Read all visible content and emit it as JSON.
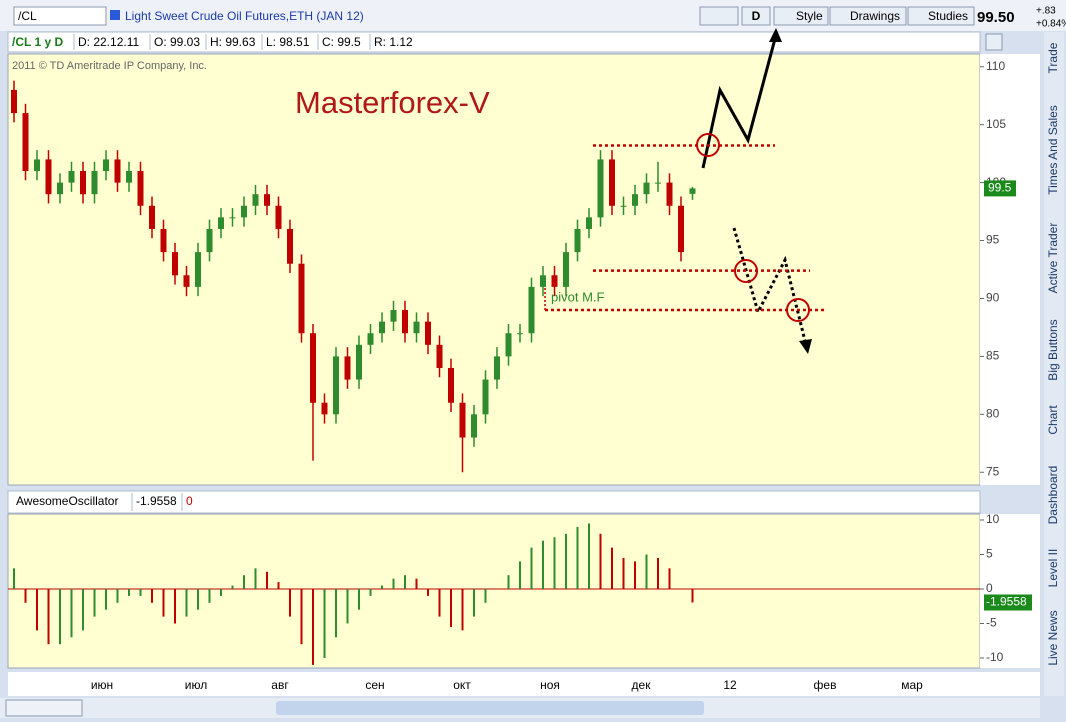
{
  "toolbar": {
    "symbol": "/CL",
    "description": "Light Sweet Crude Oil Futures,ETH (JAN 12)",
    "buttons": [
      "D",
      "Style",
      "Drawings",
      "Studies"
    ],
    "last": "99.50",
    "change": "+.83",
    "change_pct": "+0.84%"
  },
  "info_bar": [
    "/CL 1 y D",
    "D: 22.12.11",
    "O: 99.03",
    "H: 99.63",
    "L: 98.51",
    "C: 99.5",
    "R: 1.12"
  ],
  "side_tabs": [
    "Trade",
    "Times And Sales",
    "Active Trader",
    "Big Buttons",
    "Chart",
    "Dashboard",
    "Level II",
    "Live News"
  ],
  "chart_data": [
    {
      "type": "candlestick",
      "title": "Masterforex-V",
      "copyright": "2011 © TD Ameritrade IP Company, Inc.",
      "annotation": "pivot M.F",
      "up_color": "#2e8b2e",
      "down_color": "#c00000",
      "level_color": "#c00000",
      "ylim": [
        73.9,
        111.1
      ],
      "yticks": [
        75,
        80,
        85,
        90,
        95,
        100,
        105,
        110
      ],
      "levels": [
        103.2,
        92.4,
        89.0
      ],
      "last_value": 99.5,
      "x_labels": [
        "июн",
        "июл",
        "авг",
        "сен",
        "окт",
        "ноя",
        "дек",
        "12",
        "фев",
        "мар"
      ],
      "ohlc": [
        [
          108,
          108.8,
          105.2,
          106
        ],
        [
          106,
          106.8,
          100.2,
          101
        ],
        [
          101,
          102.8,
          100.2,
          102
        ],
        [
          102,
          102.8,
          98.2,
          99
        ],
        [
          99,
          100.8,
          98.2,
          100
        ],
        [
          100,
          101.8,
          99.2,
          101
        ],
        [
          101,
          101.8,
          98.2,
          99
        ],
        [
          99,
          101.8,
          98.2,
          101
        ],
        [
          101,
          102.8,
          100.2,
          102
        ],
        [
          102,
          102.8,
          99.2,
          100
        ],
        [
          100,
          101.8,
          99.2,
          101
        ],
        [
          101,
          101.8,
          97.2,
          98
        ],
        [
          98,
          98.8,
          95.2,
          96
        ],
        [
          96,
          96.8,
          93.2,
          94
        ],
        [
          94,
          94.8,
          91.2,
          92
        ],
        [
          92,
          92.8,
          90.2,
          91
        ],
        [
          91,
          94.8,
          90.2,
          94
        ],
        [
          94,
          96.8,
          93.2,
          96
        ],
        [
          96,
          97.8,
          95.2,
          97
        ],
        [
          97,
          97.8,
          96.2,
          97
        ],
        [
          97,
          98.8,
          96.2,
          98
        ],
        [
          98,
          99.8,
          97.2,
          99
        ],
        [
          99,
          99.8,
          97.2,
          98
        ],
        [
          98,
          98.8,
          95.2,
          96
        ],
        [
          96,
          96.8,
          92.2,
          93
        ],
        [
          93,
          93.8,
          86.2,
          87
        ],
        [
          87,
          87.8,
          76,
          81
        ],
        [
          81,
          81.8,
          79.2,
          80
        ],
        [
          80,
          85.8,
          79.2,
          85
        ],
        [
          85,
          85.8,
          82.2,
          83
        ],
        [
          83,
          86.8,
          82.2,
          86
        ],
        [
          86,
          87.8,
          85.2,
          87
        ],
        [
          87,
          88.8,
          86.2,
          88
        ],
        [
          88,
          89.8,
          87.2,
          89
        ],
        [
          89,
          89.8,
          86.2,
          87
        ],
        [
          87,
          88.8,
          86.2,
          88
        ],
        [
          88,
          88.8,
          85.2,
          86
        ],
        [
          86,
          86.8,
          83.2,
          84
        ],
        [
          84,
          84.8,
          80.2,
          81
        ],
        [
          81,
          81.8,
          75,
          78
        ],
        [
          78,
          80.8,
          77.2,
          80
        ],
        [
          80,
          83.8,
          79.2,
          83
        ],
        [
          83,
          85.8,
          82.2,
          85
        ],
        [
          85,
          87.8,
          84.2,
          87
        ],
        [
          87,
          87.8,
          86.2,
          87
        ],
        [
          87,
          91.8,
          86.2,
          91
        ],
        [
          91,
          92.8,
          90.2,
          92
        ],
        [
          92,
          92.8,
          90.2,
          91
        ],
        [
          91,
          94.8,
          90.2,
          94
        ],
        [
          94,
          96.8,
          93.2,
          96
        ],
        [
          96,
          97.8,
          95.2,
          97
        ],
        [
          97,
          102.8,
          96.2,
          102
        ],
        [
          102,
          102.8,
          97.2,
          98
        ],
        [
          98,
          98.8,
          97.2,
          98
        ],
        [
          98,
          99.8,
          97.2,
          99
        ],
        [
          99,
          100.8,
          98.2,
          100
        ],
        [
          100,
          101.8,
          99.2,
          100
        ],
        [
          100,
          100.8,
          97.2,
          98
        ],
        [
          98,
          98.8,
          93.2,
          94
        ],
        [
          99.03,
          99.63,
          98.51,
          99.5
        ]
      ]
    },
    {
      "type": "bar",
      "title": "AwesomeOscillator",
      "up_color": "#2e8b2e",
      "down_color": "#c00000",
      "zero_color": "#c00000",
      "last_value": -1.9558,
      "signal": 0,
      "ylim": [
        -11.45,
        10.87
      ],
      "yticks": [
        10,
        5,
        0,
        -5,
        -10
      ],
      "values": [
        3,
        -2,
        -6,
        -8,
        -8,
        -7,
        -6,
        -4,
        -3,
        -2,
        -1,
        -1,
        -2,
        -4,
        -5,
        -4,
        -3,
        -2,
        -1,
        0.5,
        2,
        3,
        2.5,
        1,
        -4,
        -8,
        -11,
        -10,
        -7,
        -5,
        -3,
        -1,
        0.5,
        1.5,
        2,
        1.5,
        -1,
        -4,
        -5.5,
        -6,
        -4,
        -2,
        0,
        2,
        4,
        6,
        7,
        7.5,
        8,
        9,
        9.5,
        8,
        6,
        4.5,
        4,
        5,
        4.5,
        3,
        0,
        -1.9558
      ]
    }
  ]
}
